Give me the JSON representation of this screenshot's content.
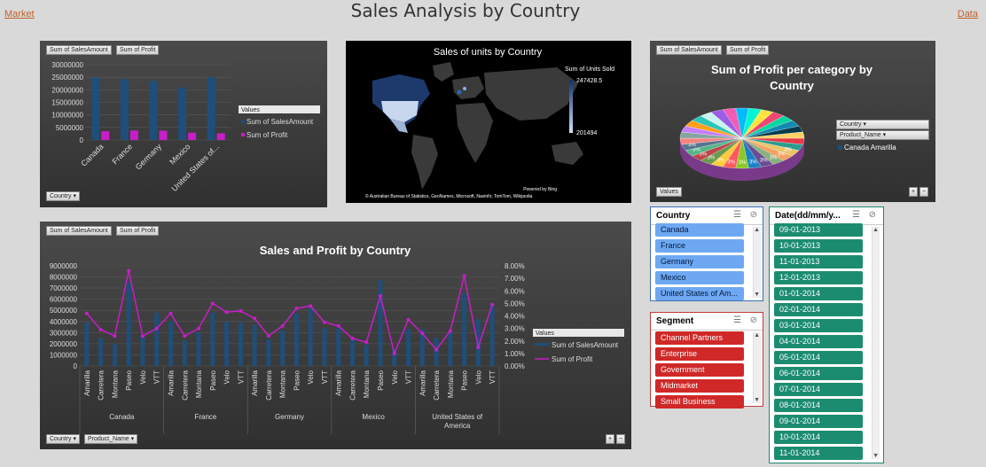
{
  "header": {
    "title": "Sales Analysis by Country",
    "left_link": "Market",
    "right_link": "Data"
  },
  "fields": {
    "sales": "Sum of SalesAmount",
    "profit": "Sum of Profit",
    "country": "Country",
    "product": "Product_Name",
    "values": "Values"
  },
  "colors": {
    "sales": "#1f4e7a",
    "profit": "#c81ec8",
    "country_slicer": "#6ea8f2",
    "segment_slicer": "#d02828",
    "date_slicer": "#1c8c71"
  },
  "map_panel": {
    "title": "Sales of units by Country",
    "legend_title": "Sum of Units Sold",
    "legend_max": "247428.5",
    "legend_min": "201494",
    "attribution_1": "Powered by Bing",
    "attribution_2": "© Australian Bureau of Statistics, GeoNames, Microsoft, Navinfo, TomTom, Wikipedia"
  },
  "pie_panel": {
    "title_line1": "Sum of Profit per category by",
    "title_line2": "Country",
    "filter_country": "Country",
    "filter_product": "Product_Name",
    "legend_entry": "Canada Amarilla",
    "values_button": "Values",
    "label_sample": "3%"
  },
  "chart_data": [
    {
      "type": "bar",
      "title": "",
      "categories": [
        "Canada",
        "France",
        "Germany",
        "Mexico",
        "United States of..."
      ],
      "series": [
        {
          "name": "Sum of SalesAmount",
          "values": [
            24900000,
            24300000,
            23500000,
            20900000,
            25000000
          ]
        },
        {
          "name": "Sum of Profit",
          "values": [
            3500000,
            3800000,
            3700000,
            2900000,
            2700000
          ]
        }
      ],
      "ylim": [
        0,
        30000000
      ],
      "yticks": [
        "0",
        "5000000",
        "10000000",
        "15000000",
        "20000000",
        "25000000",
        "30000000"
      ],
      "legend_title": "Values",
      "legend": "right"
    },
    {
      "type": "bar",
      "title": "Sales and Profit by Country",
      "groups": [
        "Canada",
        "France",
        "Germany",
        "Mexico",
        "United States of America"
      ],
      "products": [
        "Amarilla",
        "Carretera",
        "Montana",
        "Paseo",
        "Velo",
        "VTT"
      ],
      "series": [
        {
          "name": "Sum of SalesAmount",
          "axis": "left",
          "values": [
            3900000,
            2500000,
            2000000,
            7600000,
            2800000,
            4800000,
            4000000,
            2300000,
            3000000,
            4800000,
            4000000,
            3900000,
            3700000,
            2400000,
            3200000,
            4700000,
            5200000,
            3400000,
            3400000,
            2300000,
            1900000,
            7700000,
            1500000,
            3300000,
            3300000,
            2500000,
            3000000,
            6500000,
            4200000,
            5500000
          ]
        },
        {
          "name": "Sum of Profit",
          "axis": "right",
          "type": "line",
          "values": [
            4.2,
            2.9,
            2.4,
            7.6,
            2.4,
            3.0,
            4.2,
            2.4,
            3.0,
            5.0,
            4.3,
            4.4,
            3.8,
            2.4,
            3.2,
            4.6,
            4.8,
            3.5,
            3.2,
            2.2,
            1.9,
            5.6,
            1.0,
            3.7,
            2.6,
            1.3,
            2.8,
            7.2,
            1.5,
            4.9
          ]
        }
      ],
      "ylim_left": [
        0,
        9000000
      ],
      "yticks_left": [
        "0",
        "1000000",
        "2000000",
        "3000000",
        "4000000",
        "5000000",
        "6000000",
        "7000000",
        "8000000",
        "9000000"
      ],
      "ylim_right": [
        0,
        8
      ],
      "yticks_right": [
        "0.00%",
        "1.00%",
        "2.00%",
        "3.00%",
        "4.00%",
        "5.00%",
        "6.00%",
        "7.00%",
        "8.00%"
      ],
      "legend_title": "Values",
      "legend": "right"
    },
    {
      "type": "pie",
      "title": "Sum of Profit per category by Country",
      "note": "3D pie with many equal slices labeled 3%"
    }
  ],
  "slicers": {
    "country": {
      "title": "Country",
      "items": [
        "Canada",
        "France",
        "Germany",
        "Mexico",
        "United States of Am..."
      ]
    },
    "segment": {
      "title": "Segment",
      "items": [
        "Channel Partners",
        "Enterprise",
        "Government",
        "Midmarket",
        "Small Business"
      ]
    },
    "date": {
      "title": "Date(dd/mm/y...",
      "items": [
        "09-01-2013",
        "10-01-2013",
        "11-01-2013",
        "12-01-2013",
        "01-01-2014",
        "02-01-2014",
        "03-01-2014",
        "04-01-2014",
        "05-01-2014",
        "06-01-2014",
        "07-01-2014",
        "08-01-2014",
        "09-01-2014",
        "10-01-2014",
        "11-01-2014"
      ]
    }
  }
}
